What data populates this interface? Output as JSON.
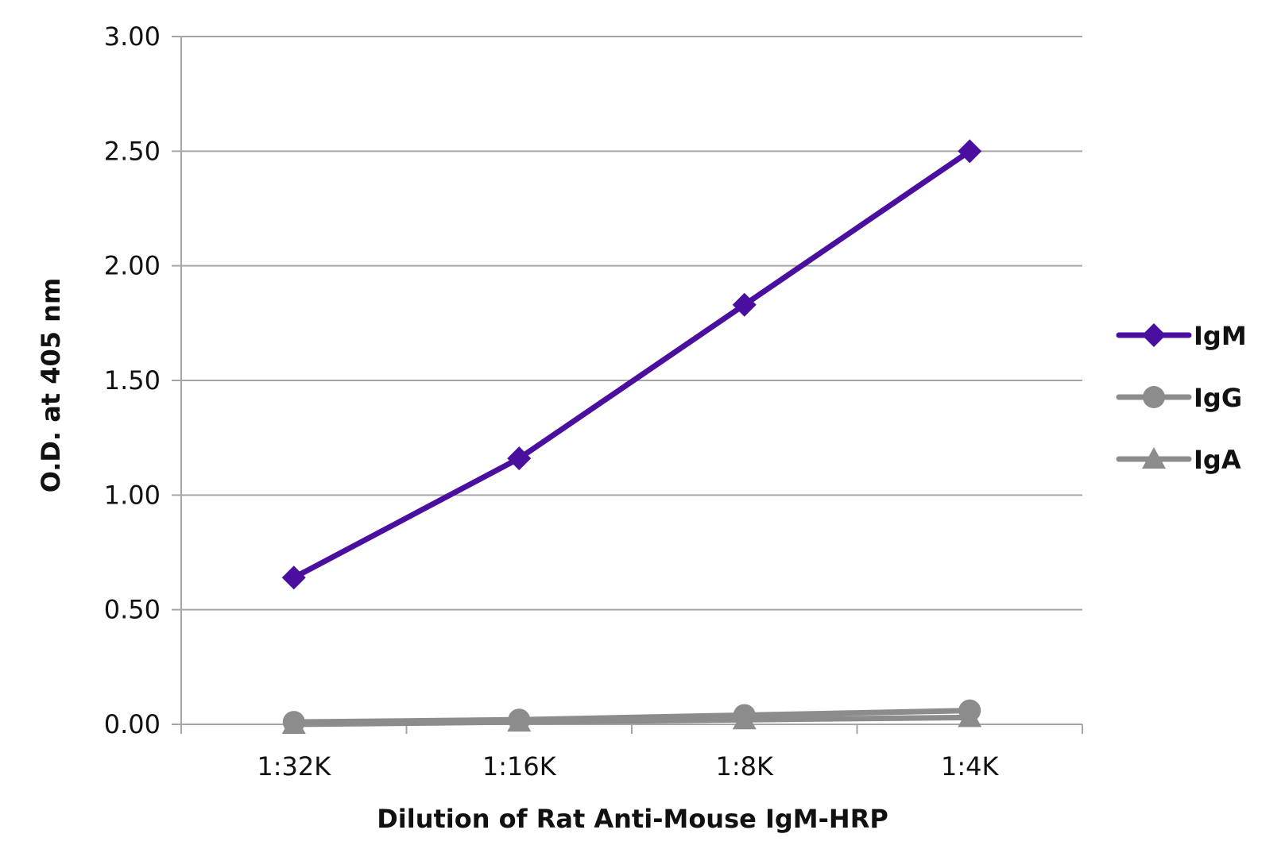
{
  "chart_data": {
    "type": "line",
    "title": "",
    "xlabel": "Dilution of Rat Anti-Mouse IgM-HRP",
    "ylabel": "O.D. at 405 nm",
    "categories": [
      "1:32K",
      "1:16K",
      "1:8K",
      "1:4K"
    ],
    "ylim": [
      0,
      3
    ],
    "yticks": [
      0,
      0.5,
      1.0,
      1.5,
      2.0,
      2.5,
      3.0
    ],
    "ytick_labels": [
      "0.00",
      "0.50",
      "1.00",
      "1.50",
      "2.00",
      "2.50",
      "3.00"
    ],
    "grid": true,
    "legend_position": "right",
    "series": [
      {
        "name": "IgM",
        "values": [
          0.64,
          1.16,
          1.83,
          2.5
        ],
        "color": "#4B0FA0",
        "marker": "diamond"
      },
      {
        "name": "IgG",
        "values": [
          0.01,
          0.02,
          0.04,
          0.06
        ],
        "color": "#8C8C8C",
        "marker": "circle"
      },
      {
        "name": "IgA",
        "values": [
          0.0,
          0.01,
          0.02,
          0.03
        ],
        "color": "#8C8C8C",
        "marker": "triangle"
      }
    ]
  }
}
